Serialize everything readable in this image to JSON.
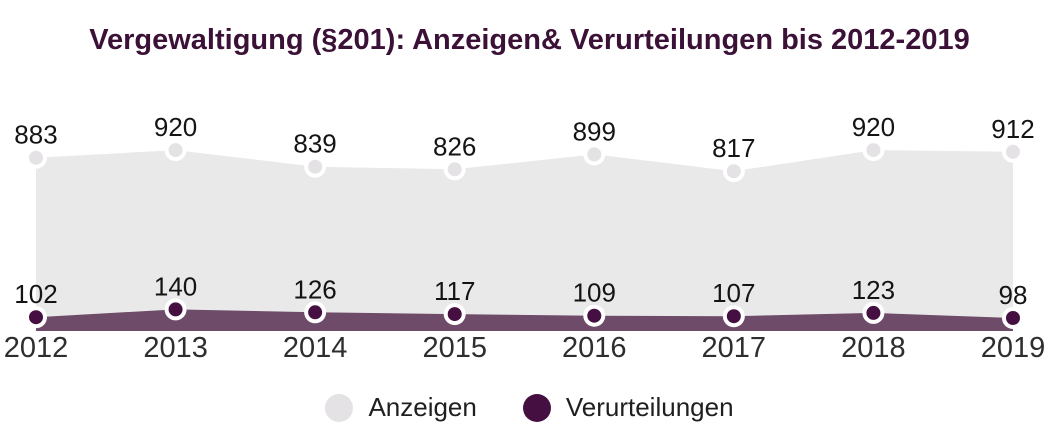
{
  "chart_data": {
    "type": "area",
    "title": "Vergewaltigung (§201): Anzeigen& Verurteilungen bis 2012-2019",
    "categories": [
      "2012",
      "2013",
      "2014",
      "2015",
      "2016",
      "2017",
      "2018",
      "2019"
    ],
    "series": [
      {
        "name": "Anzeigen",
        "values": [
          883,
          920,
          839,
          826,
          899,
          817,
          920,
          912
        ],
        "area_color": "#eae9ea",
        "marker_color": "#e4e2e4"
      },
      {
        "name": "Verurteilungen",
        "values": [
          102,
          140,
          126,
          117,
          109,
          107,
          123,
          98
        ],
        "area_color": "#6e4b68",
        "marker_color": "#451041"
      }
    ],
    "xlabel": "",
    "ylabel": "",
    "ylim": [
      0,
      1000
    ],
    "grid": false,
    "legend_position": "bottom",
    "data_labels": true
  },
  "colors": {
    "title": "#3b1137",
    "value_label": "#141414",
    "axis_label": "#2e2e2e",
    "marker_ring": "#ffffff",
    "background": "#ffffff"
  }
}
